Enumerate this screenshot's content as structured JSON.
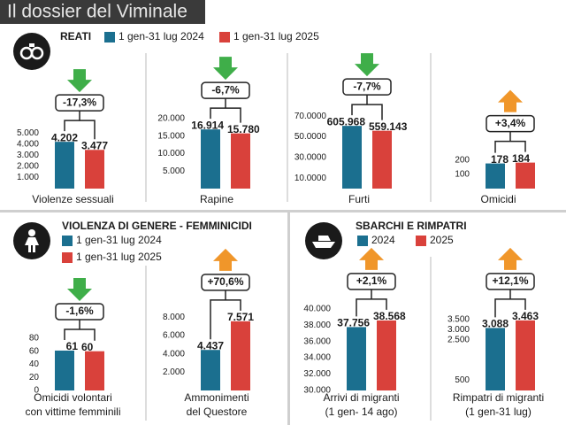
{
  "title": "Il dossier del Viminale",
  "chart_data": [
    {
      "title": "REATI",
      "legend": [
        {
          "name": "1 gen-31 lug 2024",
          "color": "#1b6f8f"
        },
        {
          "name": "1 gen-31 lug 2025",
          "color": "#d9413b"
        }
      ],
      "charts": [
        {
          "type": "bar",
          "title": [
            "Violenze sessuali"
          ],
          "values": [
            4202,
            3477
          ],
          "value_labels": [
            "4.202",
            "3.477"
          ],
          "change": {
            "value": -17.3,
            "label": "-17,3%"
          },
          "ylim": [
            0,
            6600
          ],
          "yticks": [
            {
              "value": 1000,
              "label": "1.000"
            },
            {
              "value": 2000,
              "label": "2.000"
            },
            {
              "value": 3000,
              "label": "3.000"
            },
            {
              "value": 4000,
              "label": "4.000"
            },
            {
              "value": 5000,
              "label": "5.000"
            }
          ]
        },
        {
          "type": "bar",
          "title": [
            "Rapine"
          ],
          "values": [
            16914,
            15780
          ],
          "value_labels": [
            "16.914",
            "15.780"
          ],
          "change": {
            "value": -6.7,
            "label": "-6,7%"
          },
          "ylim": [
            0,
            21000
          ],
          "yticks": [
            {
              "value": 5000,
              "label": "5.000"
            },
            {
              "value": 10000,
              "label": "10.000"
            },
            {
              "value": 15000,
              "label": "15.000"
            },
            {
              "value": 20000,
              "label": "20.000"
            }
          ]
        },
        {
          "type": "bar",
          "title": [
            "Furti"
          ],
          "values": [
            605968,
            559143
          ],
          "value_labels": [
            "605.968",
            "559.143"
          ],
          "change": {
            "value": -7.7,
            "label": "-7,7%"
          },
          "ylim": [
            0,
            710000
          ],
          "yticks": [
            {
              "value": 100000,
              "label": "10.0000"
            },
            {
              "value": 300000,
              "label": "30.0000"
            },
            {
              "value": 500000,
              "label": "50.0000"
            },
            {
              "value": 700000,
              "label": "70.0000"
            }
          ]
        },
        {
          "type": "bar",
          "title": [
            "Omicidi"
          ],
          "values": [
            178,
            184
          ],
          "change": {
            "value": 3.4,
            "label": "+3,4%"
          },
          "ylim": [
            0,
            520
          ],
          "yticks": [
            100,
            200
          ]
        }
      ]
    },
    {
      "title": "VIOLENZA DI GENERE - FEMMINICIDI",
      "legend": [
        {
          "name": "1 gen-31 lug 2024",
          "color": "#1b6f8f"
        },
        {
          "name": "1 gen-31 lug 2025",
          "color": "#d9413b"
        }
      ],
      "charts": [
        {
          "type": "bar",
          "title": [
            "Omicidi volontari",
            "con vittime femminili"
          ],
          "values": [
            61,
            60
          ],
          "change": {
            "value": -1.6,
            "label": "-1,6%"
          },
          "ylim": [
            0,
            130
          ],
          "yticks": [
            0,
            20,
            40,
            60,
            80
          ]
        },
        {
          "type": "bar",
          "title": [
            "Ammonimenti",
            "del Questore"
          ],
          "values": [
            4437,
            7571
          ],
          "value_labels": [
            "4.437",
            "7.571"
          ],
          "change": {
            "value": 70.6,
            "label": "+70,6%"
          },
          "ylim": [
            0,
            9300
          ],
          "yticks": [
            {
              "value": 2000,
              "label": "2.000"
            },
            {
              "value": 4000,
              "label": "4.000"
            },
            {
              "value": 6000,
              "label": "6.000"
            },
            {
              "value": 8000,
              "label": "8.000"
            }
          ]
        }
      ]
    },
    {
      "title": "SBARCHI E RIMPATRI",
      "legend": [
        {
          "name": "2024",
          "color": "#1b6f8f"
        },
        {
          "name": "2025",
          "color": "#d9413b"
        }
      ],
      "charts": [
        {
          "type": "bar",
          "title": [
            "Arrivi di migranti",
            "(1 gen- 14 ago)"
          ],
          "values": [
            37756,
            38568
          ],
          "value_labels": [
            "37.756",
            "38.568"
          ],
          "change": {
            "value": 2.1,
            "label": "+2,1%"
          },
          "ylim": [
            30000,
            40400
          ],
          "yticks": [
            {
              "value": 30000,
              "label": "30.000"
            },
            {
              "value": 32000,
              "label": "32.000"
            },
            {
              "value": 34000,
              "label": "34.000"
            },
            {
              "value": 36000,
              "label": "36.000"
            },
            {
              "value": 38000,
              "label": "38.000"
            },
            {
              "value": 40000,
              "label": "40.000"
            }
          ]
        },
        {
          "type": "bar",
          "title": [
            "Rimpatri di migranti",
            "(1 gen-31 lug)"
          ],
          "values": [
            3088,
            3463
          ],
          "value_labels": [
            "3.088",
            "3.463"
          ],
          "change": {
            "value": 12.1,
            "label": "+12,1%"
          },
          "ylim": [
            0,
            4200
          ],
          "yticks": [
            500,
            {
              "value": 2500,
              "label": "2.500"
            },
            {
              "value": 3000,
              "label": "3.000"
            },
            {
              "value": 3500,
              "label": "3.500"
            }
          ]
        }
      ]
    }
  ]
}
